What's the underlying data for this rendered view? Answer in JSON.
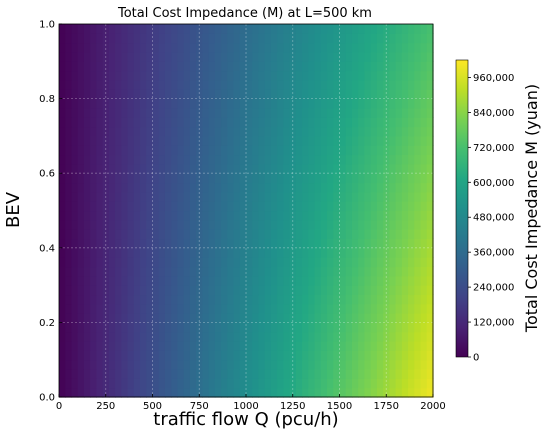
{
  "chart_data": {
    "type": "heatmap",
    "title": "Total Cost Impedance (M) at L=500 km",
    "xlabel": "traffic flow Q (pcu/h)",
    "ylabel": "BEV",
    "xlim": [
      0,
      2000
    ],
    "ylim": [
      0.0,
      1.0
    ],
    "x_ticks": [
      "0",
      "250",
      "500",
      "750",
      "1000",
      "1250",
      "1500",
      "1750",
      "2000"
    ],
    "y_ticks": [
      "0.0",
      "0.2",
      "0.4",
      "0.6",
      "0.8",
      "1.0"
    ],
    "grid": true,
    "colormap": "viridis",
    "colorbar": {
      "label": "Total Cost Impedance M (yuan)",
      "min": 0,
      "max": 1020000,
      "ticks": [
        "0",
        "120,000",
        "240,000",
        "360,000",
        "480,000",
        "600,000",
        "720,000",
        "840,000",
        "960,000"
      ]
    },
    "corner_values": {
      "Q0_BEV0": 0,
      "Q0_BEV1": 0,
      "Q2000_BEV0": 1000000,
      "Q2000_BEV1": 720000
    }
  }
}
